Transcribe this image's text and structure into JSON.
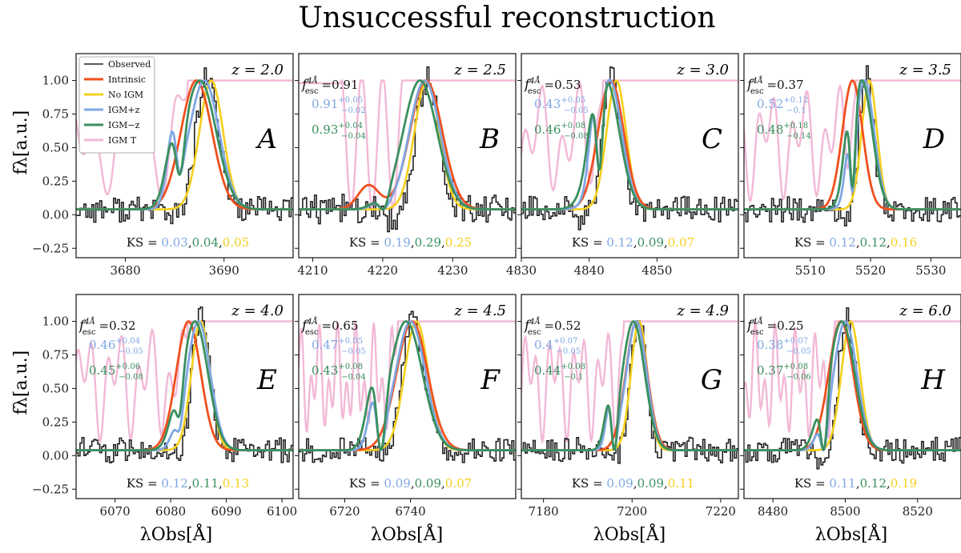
{
  "chart_data": {
    "type": "line",
    "title": "Unsuccessful reconstruction",
    "ylabel": "fλ[a.u.]",
    "xlabel": "λObs[Å]",
    "ylim": [
      -0.32,
      1.2
    ],
    "yticks": [
      "1.00",
      "0.75",
      "0.50",
      "0.25",
      "0.00",
      "−0.25"
    ],
    "ytick_values": [
      1.0,
      0.75,
      0.5,
      0.25,
      0.0,
      -0.25
    ],
    "colors": {
      "Observed": "#222222",
      "Intrinsic": "#f0501e",
      "No IGM": "#f5cf1c",
      "IGM+z": "#7fa7e3",
      "IGM-z": "#3a8f5e",
      "IGM T": "#f2b9d6",
      "black": "#111111"
    },
    "legend": [
      {
        "key": "Observed",
        "label": "Observed"
      },
      {
        "key": "Intrinsic",
        "label": "Intrinsic"
      },
      {
        "key": "No IGM",
        "label": "No IGM"
      },
      {
        "key": "IGM+z",
        "label": "IGM+z"
      },
      {
        "key": "IGM-z",
        "label": "IGM−z"
      },
      {
        "key": "IGM T",
        "label": "IGM T"
      }
    ],
    "ks_prefix": "KS =",
    "fesc_prefix": "f",
    "fesc_sup": "4Å",
    "fesc_sub": "esc",
    "panels": [
      {
        "letter": "A",
        "z_label": "z = 2.0",
        "xlim": [
          3675,
          3697
        ],
        "xticks": [
          3680,
          3690
        ],
        "peak": 3688,
        "width": 1.5,
        "shift_int": -0.8,
        "shift_noigm": 0.7,
        "trough": [
          3685.5,
          0.6
        ],
        "blue_bump": 0.6,
        "green_bump": 0.33,
        "noise": 0.06,
        "igm_flat_from": 3686.3,
        "fesc": null,
        "fesc_plus": null,
        "fesc_minus": null,
        "ks": [
          "0.03",
          "0.04",
          "0.05"
        ]
      },
      {
        "letter": "B",
        "z_label": "z = 2.5",
        "xlim": [
          4208,
          4239
        ],
        "xticks": [
          4210,
          4220,
          4230
        ],
        "peak": 4226,
        "width": 2.2,
        "shift_int": 0.2,
        "shift_noigm": 0.3,
        "trough": [
          4220,
          1.0
        ],
        "blue_bump": 0.05,
        "green_bump": 0.03,
        "noise": 0.07,
        "igm_flat_from": 4223,
        "fesc": "0.91",
        "fesc_plus": {
          "v": "0.91",
          "up": "+0.05",
          "dn": "−0.02"
        },
        "fesc_minus": {
          "v": "0.93",
          "up": "+0.04",
          "dn": "−0.04"
        },
        "ks": [
          "0.19",
          "0.29",
          "0.25"
        ]
      },
      {
        "letter": "C",
        "z_label": "z = 3.0",
        "xlim": [
          4830,
          4862
        ],
        "xticks": [
          4830,
          4840,
          4850
        ],
        "peak": 4843,
        "width": 1.8,
        "shift_int": 0.2,
        "shift_noigm": 1.0,
        "trough": [
          4841.5,
          0.7
        ],
        "blue_bump": 0.45,
        "green_bump": 0.2,
        "noise": 0.06,
        "igm_flat_from": 4842,
        "fesc": "0.53",
        "fesc_plus": {
          "v": "0.43",
          "up": "+0.05",
          "dn": "−0.05"
        },
        "fesc_minus": {
          "v": "0.46",
          "up": "+0.08",
          "dn": "−0.08"
        },
        "ks": [
          "0.12",
          "0.09",
          "0.07"
        ]
      },
      {
        "letter": "D",
        "z_label": "z = 3.5",
        "xlim": [
          5499,
          5535
        ],
        "xticks": [
          5510,
          5520,
          5530
        ],
        "peak": 5519,
        "width": 1.6,
        "shift_int": -2.0,
        "shift_noigm": 0.8,
        "trough": [
          5517,
          0.8
        ],
        "blue_bump": 0.3,
        "green_bump": 0.28,
        "noise": 0.06,
        "igm_flat_from": 5517.5,
        "fesc": "0.37",
        "fesc_plus": {
          "v": "0.52",
          "up": "+0.12",
          "dn": "−0.1"
        },
        "fesc_minus": {
          "v": "0.48",
          "up": "+0.18",
          "dn": "−0.14"
        },
        "ks": [
          "0.12",
          "0.12",
          "0.16"
        ]
      },
      {
        "letter": "E",
        "z_label": "z = 4.0",
        "xlim": [
          6063,
          6102
        ],
        "xticks": [
          6070,
          6080,
          6090,
          6100
        ],
        "peak": 6085,
        "width": 2.1,
        "shift_int": -1.8,
        "shift_noigm": 0.4,
        "trough": [
          6081.5,
          0.5
        ],
        "blue_bump": 0.07,
        "green_bump": 0.1,
        "noise": 0.06,
        "igm_flat_from": 6083,
        "fesc": "0.32",
        "fesc_plus": {
          "v": "0.46",
          "up": "+0.04",
          "dn": "−0.05"
        },
        "fesc_minus": {
          "v": "0.45",
          "up": "+0.06",
          "dn": "−0.08"
        },
        "ks": [
          "0.12",
          "0.11",
          "0.13"
        ]
      },
      {
        "letter": "F",
        "z_label": "z = 4.5",
        "xlim": [
          6706,
          6772
        ],
        "xticks": [
          6720,
          6740
        ],
        "peak": 6740,
        "width": 4.5,
        "shift_int": 0.5,
        "shift_noigm": 1.8,
        "trough": [
          6731,
          1.0
        ],
        "blue_bump": 0.42,
        "green_bump": 0.42,
        "noise": 0.06,
        "igm_flat_from": 6736,
        "fesc": "0.65",
        "fesc_plus": {
          "v": "0.47",
          "up": "+0.05",
          "dn": "−0.05"
        },
        "fesc_minus": {
          "v": "0.43",
          "up": "+0.08",
          "dn": "−0.04"
        },
        "ks": [
          "0.09",
          "0.09",
          "0.07"
        ]
      },
      {
        "letter": "G",
        "z_label": "z = 4.9",
        "xlim": [
          7175,
          7224
        ],
        "xticks": [
          7180,
          7200,
          7220
        ],
        "peak": 7201,
        "width": 2.3,
        "shift_int": 0.0,
        "shift_noigm": 0.6,
        "trough": [
          7196,
          1.0
        ],
        "blue_bump": 0.38,
        "green_bump": 0.3,
        "noise": 0.06,
        "igm_flat_from": 7198,
        "fesc": "0.52",
        "fesc_plus": {
          "v": "0.4",
          "up": "+0.07",
          "dn": "−0.05"
        },
        "fesc_minus": {
          "v": "0.44",
          "up": "+0.08",
          "dn": "−0.1"
        },
        "ks": [
          "0.09",
          "0.09",
          "0.11"
        ]
      },
      {
        "letter": "H",
        "z_label": "z = 6.0",
        "xlim": [
          8472,
          8532
        ],
        "xticks": [
          8480,
          8500,
          8520
        ],
        "peak": 8500,
        "width": 3.2,
        "shift_int": -1.2,
        "shift_noigm": 1.5,
        "trough": [
          8494,
          1.0
        ],
        "blue_bump": 0.1,
        "green_bump": 0.12,
        "noise": 0.06,
        "igm_flat_from": 8497,
        "fesc": "0.25",
        "fesc_plus": {
          "v": "0.38",
          "up": "+0.07",
          "dn": "−0.05"
        },
        "fesc_minus": {
          "v": "0.37",
          "up": "+0.08",
          "dn": "−0.06"
        },
        "ks": [
          "0.11",
          "0.12",
          "0.19"
        ]
      }
    ]
  }
}
